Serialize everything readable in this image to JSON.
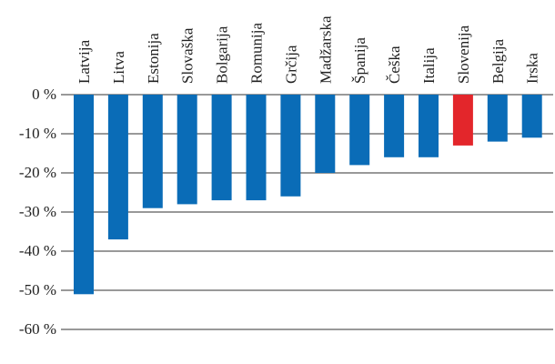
{
  "chart_data": {
    "type": "bar",
    "categories": [
      "Latvija",
      "Litva",
      "Estonija",
      "Slovaška",
      "Bolgarija",
      "Romunija",
      "Grčija",
      "Madžarska",
      "Španija",
      "Češka",
      "Italija",
      "Slovenija",
      "Belgija",
      "Irska"
    ],
    "values": [
      -51,
      -37,
      -29,
      -28,
      -27,
      -27,
      -26,
      -20,
      -18,
      -16,
      -16,
      -13,
      -12,
      -11
    ],
    "y_ticks": [
      0,
      -10,
      -20,
      -30,
      -40,
      -50,
      -60
    ],
    "y_tick_labels": [
      "0 %",
      "-10 %",
      "-20 %",
      "-30 %",
      "-40 %",
      "-50 %",
      "-60 %"
    ],
    "ylim": [
      -60,
      0
    ],
    "grid": true,
    "title": "",
    "xlabel": "",
    "ylabel": "",
    "colors": {
      "default": "#0a6cb7",
      "highlight": "#e3262b"
    },
    "highlight_category": "Slovenija"
  }
}
